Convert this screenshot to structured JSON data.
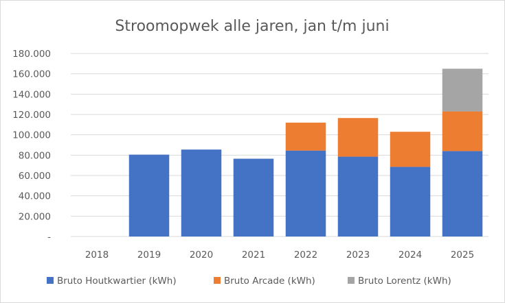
{
  "chart_data": {
    "type": "bar",
    "stacked": true,
    "title": "Stroomopwek alle jaren, jan t/m juni",
    "categories": [
      "2018",
      "2019",
      "2020",
      "2021",
      "2022",
      "2023",
      "2024",
      "2025"
    ],
    "series": [
      {
        "name": "Bruto Houtkwartier (kWh)",
        "color": "#4472c4",
        "values": [
          0,
          80500,
          85500,
          76500,
          84500,
          78500,
          68500,
          84000
        ]
      },
      {
        "name": "Bruto Arcade (kWh)",
        "color": "#ed7d31",
        "values": [
          0,
          0,
          0,
          0,
          27500,
          38000,
          34500,
          39000
        ]
      },
      {
        "name": "Bruto Lorentz (kWh)",
        "color": "#a5a5a5",
        "values": [
          0,
          0,
          0,
          0,
          0,
          0,
          0,
          42000
        ]
      }
    ],
    "yticks": [
      "-",
      "20.000",
      "40.000",
      "60.000",
      "80.000",
      "100.000",
      "120.000",
      "140.000",
      "160.000",
      "180.000"
    ],
    "ylim": [
      0,
      180000
    ],
    "grid": true,
    "legend_position": "bottom"
  }
}
